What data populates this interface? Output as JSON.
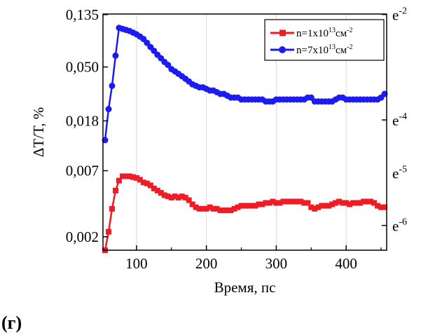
{
  "panel_label": "(г)",
  "chart_data": {
    "type": "scatter",
    "title": "",
    "xlabel": "Время, пс",
    "ylabel": "ΔT/T, %",
    "y_scale": "log",
    "xlim": [
      52,
      458
    ],
    "ylim": [
      0.00155,
      0.1365
    ],
    "x_ticks": [
      100,
      200,
      300,
      400
    ],
    "x_tick_labels": [
      "100",
      "200",
      "300",
      "400"
    ],
    "y_ticks": [
      0.002,
      0.007,
      0.018,
      0.05,
      0.135
    ],
    "y_tick_labels": [
      "0,002",
      "0,007",
      "0,018",
      "0,050",
      "0,135"
    ],
    "right_axis": {
      "ticks": [
        0.1353,
        0.01832,
        0.002479
      ],
      "labels": [
        {
          "base": "e",
          "exp": "-2"
        },
        {
          "base": "e",
          "exp": "-4"
        },
        {
          "base": "e",
          "exp": "-6"
        }
      ],
      "extra_label": {
        "value": 0.00674,
        "base": "e",
        "exp": "-5"
      }
    },
    "legend_position": "top-right",
    "series": [
      {
        "name": "n=1x10",
        "name_sup": "13",
        "name_suffix": "см",
        "name_sup2": "-2",
        "color": "#ee1c24",
        "marker": "square",
        "x": [
          55,
          60,
          65,
          70,
          75,
          80,
          85,
          90,
          95,
          100,
          105,
          110,
          115,
          120,
          125,
          130,
          135,
          140,
          145,
          150,
          155,
          160,
          165,
          170,
          175,
          180,
          185,
          190,
          195,
          200,
          205,
          210,
          215,
          220,
          225,
          230,
          235,
          240,
          245,
          250,
          255,
          260,
          265,
          270,
          275,
          280,
          285,
          290,
          295,
          300,
          305,
          310,
          315,
          320,
          325,
          330,
          335,
          340,
          345,
          350,
          355,
          360,
          365,
          370,
          375,
          380,
          385,
          390,
          395,
          400,
          405,
          410,
          415,
          420,
          425,
          430,
          435,
          440,
          445,
          450,
          455
        ],
        "y": [
          0.00155,
          0.0022,
          0.0034,
          0.0048,
          0.0058,
          0.0063,
          0.0063,
          0.0063,
          0.0062,
          0.0061,
          0.0059,
          0.0056,
          0.0055,
          0.0053,
          0.005,
          0.0048,
          0.0046,
          0.0044,
          0.0043,
          0.0042,
          0.0043,
          0.0042,
          0.0043,
          0.0042,
          0.004,
          0.0037,
          0.0035,
          0.0034,
          0.0034,
          0.0034,
          0.0035,
          0.0034,
          0.0034,
          0.0033,
          0.0033,
          0.0033,
          0.0033,
          0.0034,
          0.0035,
          0.0036,
          0.0036,
          0.0036,
          0.0036,
          0.0036,
          0.0037,
          0.0037,
          0.0038,
          0.0038,
          0.0039,
          0.0038,
          0.0038,
          0.0039,
          0.0039,
          0.0039,
          0.0039,
          0.0039,
          0.0039,
          0.0038,
          0.0038,
          0.0035,
          0.0034,
          0.0035,
          0.0036,
          0.0036,
          0.0036,
          0.0037,
          0.0038,
          0.0039,
          0.0038,
          0.0038,
          0.0037,
          0.0038,
          0.0038,
          0.0038,
          0.0039,
          0.0039,
          0.0039,
          0.0038,
          0.0036,
          0.0035,
          0.0035
        ]
      },
      {
        "name": "n=7x10",
        "name_sup": "13",
        "name_suffix": "см",
        "name_sup2": "-2",
        "color": "#1c1cf0",
        "marker": "circle",
        "x": [
          55,
          60,
          65,
          70,
          75,
          80,
          85,
          90,
          95,
          100,
          105,
          110,
          115,
          120,
          125,
          130,
          135,
          140,
          145,
          150,
          155,
          160,
          165,
          170,
          175,
          180,
          185,
          190,
          195,
          200,
          205,
          210,
          215,
          220,
          225,
          230,
          235,
          240,
          245,
          250,
          255,
          260,
          265,
          270,
          275,
          280,
          285,
          290,
          295,
          300,
          305,
          310,
          315,
          320,
          325,
          330,
          335,
          340,
          345,
          350,
          355,
          360,
          365,
          370,
          375,
          380,
          385,
          390,
          395,
          400,
          405,
          410,
          415,
          420,
          425,
          430,
          435,
          440,
          445,
          450,
          455
        ],
        "y": [
          0.0125,
          0.0225,
          0.035,
          0.062,
          0.105,
          0.103,
          0.101,
          0.099,
          0.096,
          0.093,
          0.089,
          0.085,
          0.079,
          0.073,
          0.068,
          0.063,
          0.059,
          0.055,
          0.052,
          0.048,
          0.046,
          0.044,
          0.042,
          0.04,
          0.038,
          0.036,
          0.035,
          0.034,
          0.034,
          0.033,
          0.032,
          0.032,
          0.031,
          0.03,
          0.03,
          0.029,
          0.028,
          0.028,
          0.028,
          0.027,
          0.027,
          0.027,
          0.027,
          0.027,
          0.027,
          0.027,
          0.026,
          0.026,
          0.026,
          0.027,
          0.027,
          0.027,
          0.027,
          0.027,
          0.027,
          0.027,
          0.027,
          0.027,
          0.028,
          0.028,
          0.026,
          0.026,
          0.026,
          0.026,
          0.026,
          0.026,
          0.027,
          0.028,
          0.028,
          0.027,
          0.027,
          0.027,
          0.027,
          0.027,
          0.027,
          0.027,
          0.027,
          0.027,
          0.027,
          0.028,
          0.03
        ]
      }
    ]
  }
}
